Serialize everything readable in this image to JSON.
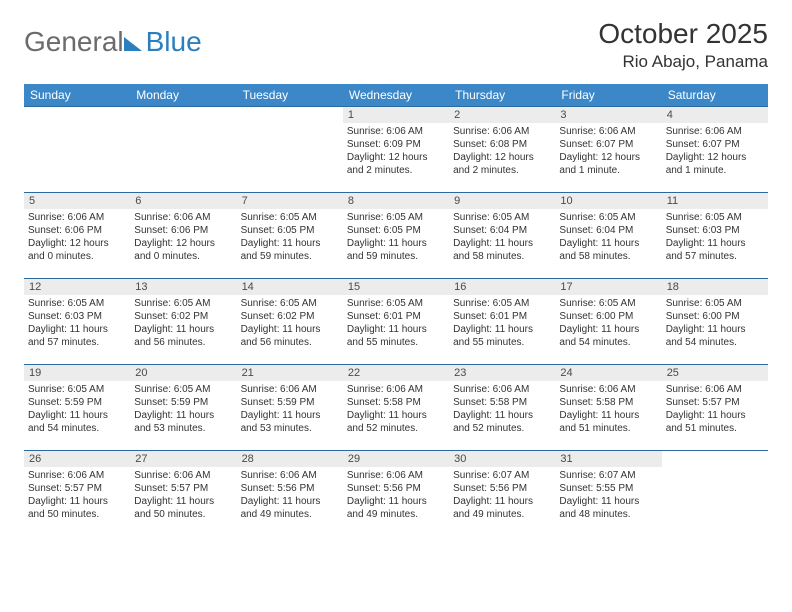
{
  "logo": {
    "text1": "General",
    "text2": "Blue"
  },
  "title": "October 2025",
  "location": "Rio Abajo, Panama",
  "header_bg": "#3b87c8",
  "header_text_color": "#ffffff",
  "daynum_bg": "#ececec",
  "row_border_color": "#2b6aa0",
  "body_text_color": "#333333",
  "font_family": "Arial",
  "day_headers": [
    "Sunday",
    "Monday",
    "Tuesday",
    "Wednesday",
    "Thursday",
    "Friday",
    "Saturday"
  ],
  "weeks": [
    [
      null,
      null,
      null,
      {
        "n": "1",
        "sr": "6:06 AM",
        "ss": "6:09 PM",
        "dl": "12 hours and 2 minutes."
      },
      {
        "n": "2",
        "sr": "6:06 AM",
        "ss": "6:08 PM",
        "dl": "12 hours and 2 minutes."
      },
      {
        "n": "3",
        "sr": "6:06 AM",
        "ss": "6:07 PM",
        "dl": "12 hours and 1 minute."
      },
      {
        "n": "4",
        "sr": "6:06 AM",
        "ss": "6:07 PM",
        "dl": "12 hours and 1 minute."
      }
    ],
    [
      {
        "n": "5",
        "sr": "6:06 AM",
        "ss": "6:06 PM",
        "dl": "12 hours and 0 minutes."
      },
      {
        "n": "6",
        "sr": "6:06 AM",
        "ss": "6:06 PM",
        "dl": "12 hours and 0 minutes."
      },
      {
        "n": "7",
        "sr": "6:05 AM",
        "ss": "6:05 PM",
        "dl": "11 hours and 59 minutes."
      },
      {
        "n": "8",
        "sr": "6:05 AM",
        "ss": "6:05 PM",
        "dl": "11 hours and 59 minutes."
      },
      {
        "n": "9",
        "sr": "6:05 AM",
        "ss": "6:04 PM",
        "dl": "11 hours and 58 minutes."
      },
      {
        "n": "10",
        "sr": "6:05 AM",
        "ss": "6:04 PM",
        "dl": "11 hours and 58 minutes."
      },
      {
        "n": "11",
        "sr": "6:05 AM",
        "ss": "6:03 PM",
        "dl": "11 hours and 57 minutes."
      }
    ],
    [
      {
        "n": "12",
        "sr": "6:05 AM",
        "ss": "6:03 PM",
        "dl": "11 hours and 57 minutes."
      },
      {
        "n": "13",
        "sr": "6:05 AM",
        "ss": "6:02 PM",
        "dl": "11 hours and 56 minutes."
      },
      {
        "n": "14",
        "sr": "6:05 AM",
        "ss": "6:02 PM",
        "dl": "11 hours and 56 minutes."
      },
      {
        "n": "15",
        "sr": "6:05 AM",
        "ss": "6:01 PM",
        "dl": "11 hours and 55 minutes."
      },
      {
        "n": "16",
        "sr": "6:05 AM",
        "ss": "6:01 PM",
        "dl": "11 hours and 55 minutes."
      },
      {
        "n": "17",
        "sr": "6:05 AM",
        "ss": "6:00 PM",
        "dl": "11 hours and 54 minutes."
      },
      {
        "n": "18",
        "sr": "6:05 AM",
        "ss": "6:00 PM",
        "dl": "11 hours and 54 minutes."
      }
    ],
    [
      {
        "n": "19",
        "sr": "6:05 AM",
        "ss": "5:59 PM",
        "dl": "11 hours and 54 minutes."
      },
      {
        "n": "20",
        "sr": "6:05 AM",
        "ss": "5:59 PM",
        "dl": "11 hours and 53 minutes."
      },
      {
        "n": "21",
        "sr": "6:06 AM",
        "ss": "5:59 PM",
        "dl": "11 hours and 53 minutes."
      },
      {
        "n": "22",
        "sr": "6:06 AM",
        "ss": "5:58 PM",
        "dl": "11 hours and 52 minutes."
      },
      {
        "n": "23",
        "sr": "6:06 AM",
        "ss": "5:58 PM",
        "dl": "11 hours and 52 minutes."
      },
      {
        "n": "24",
        "sr": "6:06 AM",
        "ss": "5:58 PM",
        "dl": "11 hours and 51 minutes."
      },
      {
        "n": "25",
        "sr": "6:06 AM",
        "ss": "5:57 PM",
        "dl": "11 hours and 51 minutes."
      }
    ],
    [
      {
        "n": "26",
        "sr": "6:06 AM",
        "ss": "5:57 PM",
        "dl": "11 hours and 50 minutes."
      },
      {
        "n": "27",
        "sr": "6:06 AM",
        "ss": "5:57 PM",
        "dl": "11 hours and 50 minutes."
      },
      {
        "n": "28",
        "sr": "6:06 AM",
        "ss": "5:56 PM",
        "dl": "11 hours and 49 minutes."
      },
      {
        "n": "29",
        "sr": "6:06 AM",
        "ss": "5:56 PM",
        "dl": "11 hours and 49 minutes."
      },
      {
        "n": "30",
        "sr": "6:07 AM",
        "ss": "5:56 PM",
        "dl": "11 hours and 49 minutes."
      },
      {
        "n": "31",
        "sr": "6:07 AM",
        "ss": "5:55 PM",
        "dl": "11 hours and 48 minutes."
      },
      null
    ]
  ],
  "labels": {
    "sunrise": "Sunrise:",
    "sunset": "Sunset:",
    "daylight": "Daylight:"
  }
}
